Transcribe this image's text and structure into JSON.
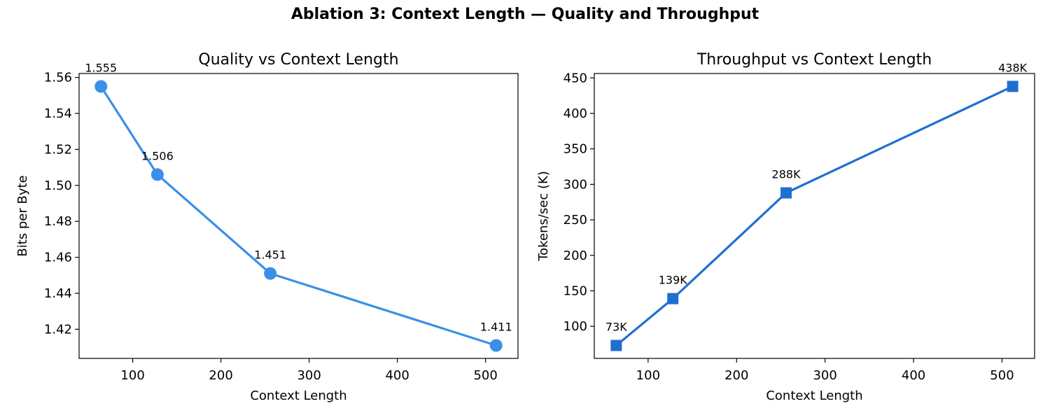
{
  "title": "Ablation 3: Context Length — Quality and Throughput",
  "chart_data": [
    {
      "type": "line",
      "title": "Quality vs Context Length",
      "xlabel": "Context Length",
      "ylabel": "Bits per Byte",
      "x": [
        64,
        128,
        256,
        512
      ],
      "series": [
        {
          "values": [
            1.555,
            1.506,
            1.451,
            1.411
          ],
          "color": "#3a8fe8",
          "marker": "circle"
        }
      ],
      "data_labels": [
        "1.555",
        "1.506",
        "1.451",
        "1.411"
      ],
      "xlim": [
        39.2,
        536.8
      ],
      "ylim": [
        1.4038,
        1.5622
      ],
      "xticks": [
        100,
        200,
        300,
        400,
        500
      ],
      "xtick_labels": [
        "100",
        "200",
        "300",
        "400",
        "500"
      ],
      "yticks": [
        1.42,
        1.44,
        1.46,
        1.48,
        1.5,
        1.52,
        1.54,
        1.56
      ],
      "ytick_labels": [
        "1.42",
        "1.44",
        "1.46",
        "1.48",
        "1.50",
        "1.52",
        "1.54",
        "1.56"
      ],
      "grid": false
    },
    {
      "type": "line",
      "title": "Throughput vs Context Length",
      "xlabel": "Context Length",
      "ylabel": "Tokens/sec (K)",
      "x": [
        64,
        128,
        256,
        512
      ],
      "series": [
        {
          "values": [
            73,
            139,
            288,
            438
          ],
          "color": "#1f6fd1",
          "marker": "square"
        }
      ],
      "data_labels": [
        "73K",
        "139K",
        "288K",
        "438K"
      ],
      "xlim": [
        39.2,
        536.8
      ],
      "ylim": [
        54.8,
        456.2
      ],
      "xticks": [
        100,
        200,
        300,
        400,
        500
      ],
      "xtick_labels": [
        "100",
        "200",
        "300",
        "400",
        "500"
      ],
      "yticks": [
        100,
        150,
        200,
        250,
        300,
        350,
        400,
        450
      ],
      "ytick_labels": [
        "100",
        "150",
        "200",
        "250",
        "300",
        "350",
        "400",
        "450"
      ],
      "grid": false
    }
  ]
}
